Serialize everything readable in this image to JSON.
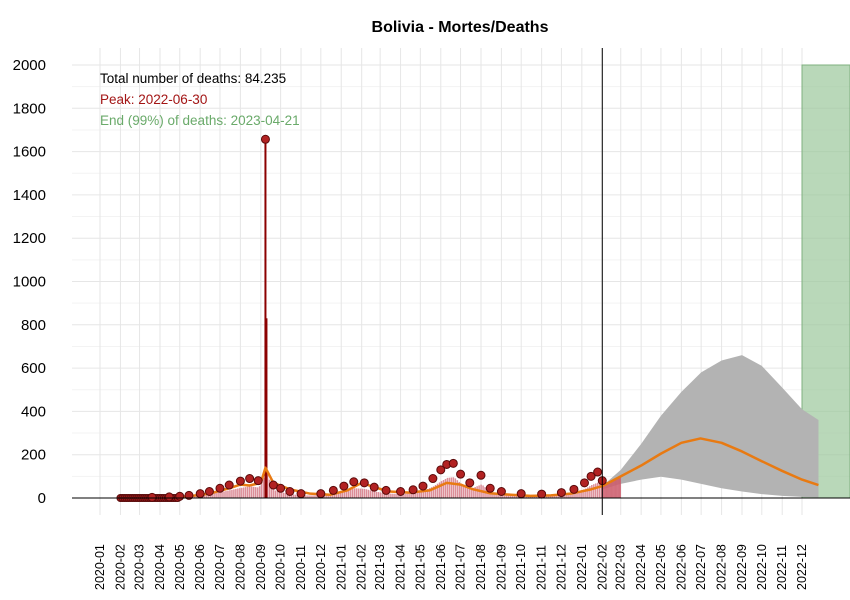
{
  "chart_data": {
    "type": "line",
    "title": "Bolivia - Mortes/Deaths",
    "xlabel": "",
    "ylabel": "",
    "ylim": [
      0,
      2000
    ],
    "xlim": [
      "2019-12-15",
      "2023-01-15"
    ],
    "yticks": [
      0,
      200,
      400,
      600,
      800,
      1000,
      1200,
      1400,
      1600,
      1800,
      2000
    ],
    "xticks": [
      "2020-01",
      "2020-02",
      "2020-03",
      "2020-04",
      "2020-05",
      "2020-06",
      "2020-07",
      "2020-08",
      "2020-09",
      "2020-10",
      "2020-11",
      "2020-12",
      "2021-01",
      "2021-02",
      "2021-03",
      "2021-04",
      "2021-05",
      "2021-06",
      "2021-07",
      "2021-08",
      "2021-09",
      "2021-10",
      "2021-11",
      "2021-12",
      "2022-01",
      "2022-02",
      "2022-03",
      "2022-04",
      "2022-05",
      "2022-06",
      "2022-07",
      "2022-08",
      "2022-09",
      "2022-10",
      "2022-11",
      "2022-12"
    ],
    "grid": true,
    "annotations": [
      {
        "text": "Total number of deaths: 84.235",
        "color": "#000000"
      },
      {
        "text": "Peak: 2022-06-30",
        "color": "#a31515"
      },
      {
        "text": "End (99%) of deaths: 2023-04-21",
        "color": "#6aaa6a"
      }
    ],
    "colors": {
      "points": "#b22222",
      "points_border": "#5a0a0a",
      "bars": "#8b0000",
      "fitted": "#e87a12",
      "band": "#b3b3b3",
      "forecast_bar": "#cd5c6c",
      "end_region": "#9bc79b",
      "vline": "#000000"
    },
    "current_date": "2022-02-01",
    "end_region": {
      "start": "2022-12-01",
      "end": "2023-01-15",
      "y": 2000
    },
    "observed": {
      "x": [
        "2020-03-20",
        "2020-04-15",
        "2020-05-01",
        "2020-05-15",
        "2020-06-01",
        "2020-06-15",
        "2020-07-01",
        "2020-07-15",
        "2020-08-01",
        "2020-08-15",
        "2020-08-28",
        "2020-09-08",
        "2020-09-20",
        "2020-10-01",
        "2020-10-15",
        "2020-11-01",
        "2020-12-01",
        "2020-12-20",
        "2021-01-05",
        "2021-01-20",
        "2021-02-05",
        "2021-02-20",
        "2021-03-10",
        "2021-04-01",
        "2021-04-20",
        "2021-05-05",
        "2021-05-20",
        "2021-06-01",
        "2021-06-10",
        "2021-06-20",
        "2021-07-01",
        "2021-07-15",
        "2021-08-01",
        "2021-08-15",
        "2021-09-01",
        "2021-10-01",
        "2021-11-01",
        "2021-12-01",
        "2021-12-20",
        "2022-01-05",
        "2022-01-15",
        "2022-01-25",
        "2022-02-01"
      ],
      "y": [
        3,
        5,
        8,
        12,
        20,
        30,
        45,
        60,
        78,
        90,
        80,
        1657,
        60,
        45,
        30,
        20,
        20,
        35,
        55,
        75,
        70,
        50,
        35,
        30,
        38,
        55,
        90,
        130,
        155,
        160,
        110,
        70,
        105,
        45,
        30,
        20,
        18,
        25,
        40,
        70,
        100,
        120,
        80
      ]
    },
    "fitted": {
      "x": [
        "2020-02-15",
        "2020-03-15",
        "2020-04-15",
        "2020-05-15",
        "2020-06-15",
        "2020-07-15",
        "2020-08-01",
        "2020-08-15",
        "2020-09-01",
        "2020-09-08",
        "2020-09-20",
        "2020-10-15",
        "2020-11-15",
        "2020-12-15",
        "2021-01-10",
        "2021-02-01",
        "2021-02-20",
        "2021-03-15",
        "2021-04-15",
        "2021-05-15",
        "2021-06-10",
        "2021-07-01",
        "2021-07-20",
        "2021-08-15",
        "2021-09-15",
        "2021-10-15",
        "2021-11-15",
        "2021-12-15",
        "2022-01-15",
        "2022-02-01",
        "2022-03-01",
        "2022-04-01",
        "2022-05-01",
        "2022-06-01",
        "2022-06-30",
        "2022-08-01",
        "2022-09-01",
        "2022-10-01",
        "2022-11-01",
        "2022-12-01",
        "2022-12-26"
      ],
      "y": [
        0,
        0,
        2,
        8,
        20,
        45,
        62,
        58,
        70,
        140,
        70,
        40,
        20,
        15,
        35,
        70,
        50,
        30,
        25,
        35,
        70,
        62,
        40,
        22,
        15,
        10,
        12,
        20,
        40,
        55,
        100,
        150,
        205,
        255,
        275,
        255,
        215,
        170,
        125,
        85,
        60
      ]
    },
    "forecast_band": {
      "x": [
        "2022-02-01",
        "2022-03-01",
        "2022-04-01",
        "2022-05-01",
        "2022-06-01",
        "2022-07-01",
        "2022-08-01",
        "2022-09-01",
        "2022-10-01",
        "2022-11-01",
        "2022-12-01",
        "2022-12-26"
      ],
      "upper": [
        55,
        130,
        250,
        380,
        490,
        580,
        635,
        660,
        610,
        510,
        410,
        360
      ],
      "lower": [
        40,
        65,
        85,
        98,
        85,
        65,
        45,
        30,
        18,
        10,
        5,
        3
      ]
    }
  }
}
